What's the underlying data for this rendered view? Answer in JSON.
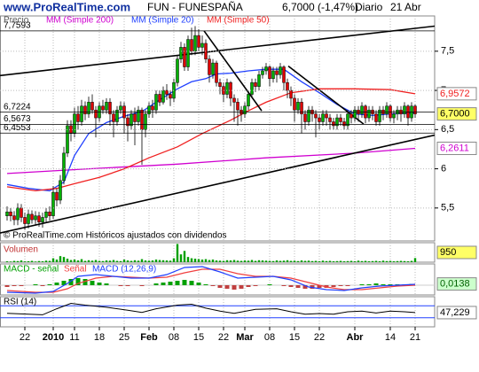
{
  "header": {
    "site": "www.ProRealTime.com",
    "title": "FUN - FUNESPAÑA",
    "quote": "6,7000 (-1,47%)",
    "period": "Diario",
    "date": "21 Abr"
  },
  "chart_data": [
    {
      "type": "candlestick",
      "name": "Precio",
      "up_color": "#00b000",
      "down_color": "#e00000",
      "open": [
        5.4,
        5.45,
        5.4,
        5.35,
        5.5,
        5.38,
        5.3,
        5.42,
        5.35,
        5.4,
        5.32,
        5.38,
        5.45,
        5.4,
        5.7,
        5.6,
        5.85,
        6.2,
        6.55,
        6.45,
        6.7,
        6.6,
        6.8,
        6.7,
        6.85,
        6.75,
        6.65,
        6.8,
        6.75,
        6.85,
        6.7,
        6.6,
        6.75,
        6.8,
        6.65,
        6.55,
        6.7,
        6.6,
        6.75,
        6.5,
        6.7,
        6.8,
        6.75,
        6.95,
        6.85,
        7.0,
        6.95,
        6.9,
        7.1,
        7.4,
        7.55,
        7.3,
        7.65,
        7.5,
        7.7,
        7.55,
        7.6,
        7.4,
        7.2,
        7.35,
        7.1,
        7.05,
        6.95,
        7.1,
        6.9,
        6.85,
        6.75,
        6.7,
        6.8,
        6.95,
        7.1,
        7.05,
        7.2,
        7.25,
        7.3,
        7.15,
        7.25,
        7.2,
        7.3,
        7.1,
        7.0,
        6.9,
        6.75,
        6.85,
        6.7,
        6.6,
        6.75,
        6.7,
        6.65,
        6.6,
        6.7,
        6.65,
        6.6,
        6.55,
        6.65,
        6.6,
        6.55,
        6.7,
        6.65,
        6.75,
        6.7,
        6.8,
        6.65,
        6.75,
        6.7,
        6.6,
        6.75,
        6.7,
        6.8,
        6.65,
        6.7,
        6.75,
        6.7,
        6.8,
        6.65,
        6.8
      ],
      "high": [
        5.52,
        5.5,
        5.46,
        5.56,
        5.55,
        5.44,
        5.48,
        5.47,
        5.46,
        5.45,
        5.44,
        5.5,
        5.52,
        5.78,
        5.75,
        5.92,
        6.28,
        6.62,
        6.62,
        6.78,
        6.8,
        6.88,
        6.86,
        6.92,
        6.95,
        6.8,
        6.85,
        6.88,
        6.9,
        6.9,
        6.75,
        6.8,
        6.86,
        6.85,
        6.7,
        6.75,
        6.78,
        6.8,
        6.78,
        6.75,
        6.85,
        6.88,
        7.0,
        7.0,
        7.05,
        7.08,
        7.0,
        7.15,
        7.45,
        7.62,
        7.6,
        7.7,
        7.8,
        7.82,
        7.78,
        7.7,
        7.65,
        7.45,
        7.4,
        7.38,
        7.15,
        7.1,
        7.15,
        7.12,
        6.95,
        6.9,
        6.8,
        6.85,
        7.0,
        7.15,
        7.15,
        7.25,
        7.3,
        7.35,
        7.32,
        7.3,
        7.3,
        7.35,
        7.32,
        7.15,
        7.05,
        6.95,
        6.9,
        6.9,
        6.75,
        6.8,
        6.8,
        6.75,
        6.7,
        6.75,
        6.75,
        6.7,
        6.65,
        6.7,
        6.7,
        6.65,
        6.75,
        6.75,
        6.8,
        6.8,
        6.85,
        6.82,
        6.8,
        6.8,
        6.75,
        6.8,
        6.8,
        6.85,
        6.82,
        6.75,
        6.8,
        6.8,
        6.85,
        6.82,
        6.85,
        6.82
      ],
      "low": [
        5.34,
        5.33,
        5.28,
        5.28,
        5.32,
        5.22,
        5.24,
        5.3,
        5.28,
        5.26,
        5.25,
        5.32,
        5.34,
        5.36,
        5.52,
        5.55,
        5.8,
        6.15,
        6.35,
        6.4,
        6.5,
        6.55,
        6.62,
        6.65,
        6.7,
        6.4,
        6.6,
        6.7,
        6.7,
        6.55,
        6.4,
        6.55,
        6.7,
        6.45,
        6.35,
        6.5,
        6.3,
        6.55,
        6.05,
        6.4,
        6.65,
        6.65,
        6.7,
        6.8,
        6.82,
        6.88,
        6.8,
        6.85,
        7.05,
        7.35,
        7.25,
        7.25,
        7.45,
        7.45,
        7.5,
        7.45,
        7.35,
        7.1,
        7.15,
        7.05,
        6.95,
        6.85,
        6.9,
        6.8,
        6.6,
        6.55,
        6.6,
        6.65,
        6.75,
        6.9,
        6.98,
        7.0,
        7.15,
        7.2,
        7.05,
        7.1,
        7.1,
        7.15,
        7.0,
        6.9,
        6.8,
        6.6,
        6.7,
        6.45,
        6.5,
        6.55,
        6.6,
        6.4,
        6.5,
        6.55,
        6.55,
        6.5,
        6.5,
        6.5,
        6.55,
        6.5,
        6.5,
        6.58,
        6.6,
        6.6,
        6.65,
        6.58,
        6.6,
        6.62,
        6.55,
        6.55,
        6.62,
        6.65,
        6.6,
        6.58,
        6.62,
        6.6,
        6.65,
        6.55,
        6.6,
        6.65
      ],
      "close": [
        5.45,
        5.4,
        5.35,
        5.5,
        5.38,
        5.3,
        5.42,
        5.35,
        5.4,
        5.32,
        5.38,
        5.45,
        5.4,
        5.7,
        5.6,
        5.85,
        6.2,
        6.55,
        6.45,
        6.7,
        6.6,
        6.8,
        6.7,
        6.85,
        6.75,
        6.65,
        6.8,
        6.75,
        6.85,
        6.7,
        6.6,
        6.75,
        6.8,
        6.65,
        6.55,
        6.7,
        6.6,
        6.75,
        6.5,
        6.7,
        6.8,
        6.75,
        6.95,
        6.85,
        7.0,
        6.95,
        6.9,
        7.1,
        7.4,
        7.55,
        7.3,
        7.65,
        7.5,
        7.7,
        7.55,
        7.6,
        7.4,
        7.2,
        7.35,
        7.1,
        7.05,
        6.95,
        7.1,
        6.9,
        6.85,
        6.75,
        6.7,
        6.8,
        6.95,
        7.1,
        7.05,
        7.2,
        7.25,
        7.3,
        7.15,
        7.25,
        7.2,
        7.3,
        7.1,
        7.0,
        6.9,
        6.75,
        6.85,
        6.7,
        6.6,
        6.75,
        6.7,
        6.65,
        6.6,
        6.7,
        6.65,
        6.6,
        6.55,
        6.65,
        6.6,
        6.55,
        6.7,
        6.65,
        6.75,
        6.7,
        6.8,
        6.65,
        6.75,
        6.7,
        6.6,
        6.75,
        6.7,
        6.8,
        6.65,
        6.7,
        6.75,
        6.7,
        6.8,
        6.65,
        6.8,
        6.7
      ],
      "last_label": "6,7000",
      "overlays": [
        {
          "name": "MM (Simple 200)",
          "color": "#d000d0",
          "x": [
            0,
            23,
            48,
            73,
            98,
            115
          ],
          "values": [
            5.94,
            6.0,
            6.06,
            6.14,
            6.2,
            6.2611
          ],
          "last_label": "6,2611"
        },
        {
          "name": "MM (Simple 20)",
          "color": "#2040ff",
          "x": [
            0,
            6,
            12,
            16,
            19,
            23,
            28,
            33,
            38,
            43,
            48,
            52,
            56,
            59,
            63,
            68,
            73,
            78,
            83,
            88,
            93,
            98,
            103,
            108,
            115
          ],
          "values": [
            5.8,
            5.75,
            5.72,
            5.83,
            6.17,
            6.45,
            6.59,
            6.67,
            6.73,
            6.88,
            7.02,
            7.11,
            7.15,
            7.21,
            7.22,
            7.25,
            7.27,
            7.27,
            7.11,
            6.97,
            6.82,
            6.7,
            6.68,
            6.7,
            6.71
          ]
        },
        {
          "name": "MM (Simple 50)",
          "color": "#f02020",
          "x": [
            0,
            8,
            14,
            19,
            26,
            33,
            40,
            48,
            55,
            63,
            68,
            73,
            80,
            88,
            98,
            108,
            115
          ],
          "values": [
            5.77,
            5.72,
            5.75,
            5.81,
            5.89,
            6.0,
            6.14,
            6.28,
            6.45,
            6.62,
            6.74,
            6.85,
            6.97,
            7.02,
            7.02,
            7.01,
            6.9572
          ],
          "last_label": "6,9572"
        }
      ],
      "levels": [
        {
          "value": 7.7593,
          "label": "7,7593"
        },
        {
          "value": 6.7224,
          "label": "6,7224"
        },
        {
          "value": 6.5673,
          "label": "6,5673"
        },
        {
          "value": 6.4553,
          "label": "6,4553"
        }
      ],
      "trendlines": [
        {
          "x": [
            -2,
            120.5
          ],
          "values": [
            7.19,
            7.82
          ]
        },
        {
          "x": [
            -2,
            120.5
          ],
          "values": [
            5.18,
            6.43
          ]
        },
        {
          "x": [
            55.5,
            71.75
          ],
          "values": [
            7.76,
            6.74
          ]
        },
        {
          "x": [
            79.25,
            100.5
          ],
          "values": [
            7.31,
            6.57
          ]
        }
      ],
      "note": "© ProRealTime.com Históricos ajustados con dividendos",
      "ylim": [
        5.08,
        7.95
      ],
      "yticks": [
        {
          "value": 5.5,
          "label": "5,5"
        },
        6,
        {
          "value": 6.5,
          "label": "6,5"
        },
        7,
        {
          "value": 7.5,
          "label": "7,5"
        }
      ],
      "xlim": [
        -2,
        120.5
      ],
      "xticks": [
        {
          "value": 5,
          "label": "22"
        },
        {
          "value": 13,
          "label": "2010"
        },
        {
          "value": 19,
          "label": "11"
        },
        {
          "value": 26,
          "label": "18"
        },
        {
          "value": 33,
          "label": "25"
        },
        {
          "value": 40,
          "label": "Feb"
        },
        {
          "value": 47,
          "label": "08"
        },
        {
          "value": 54,
          "label": "15"
        },
        {
          "value": 61,
          "label": "22"
        },
        {
          "value": 67,
          "label": "Mar"
        },
        {
          "value": 74,
          "label": "08"
        },
        {
          "value": 81,
          "label": "15"
        },
        {
          "value": 88,
          "label": "22"
        },
        {
          "value": 98,
          "label": "Abr"
        },
        {
          "value": 108,
          "label": "14"
        },
        {
          "value": 115,
          "label": "21"
        }
      ],
      "grid": true
    },
    {
      "type": "bar",
      "title": "Volumen",
      "color": "#00a000",
      "ylim": [
        0,
        4500
      ],
      "values": [
        200,
        150,
        300,
        250,
        400,
        180,
        220,
        300,
        150,
        260,
        200,
        350,
        300,
        900,
        600,
        1400,
        1200,
        800,
        500,
        600,
        400,
        700,
        300,
        450,
        350,
        500,
        300,
        250,
        400,
        350,
        500,
        300,
        250,
        600,
        400,
        300,
        450,
        350,
        700,
        400,
        350,
        400,
        600,
        500,
        450,
        400,
        350,
        900,
        4200,
        1800,
        2600,
        1200,
        900,
        800,
        700,
        600,
        700,
        500,
        600,
        400,
        350,
        300,
        450,
        400,
        500,
        350,
        300,
        400,
        350,
        500,
        300,
        450,
        400,
        350,
        300,
        250,
        400,
        300,
        350,
        450,
        300,
        350,
        250,
        400,
        300,
        350,
        250,
        300,
        200,
        350,
        250,
        300,
        200,
        250,
        300,
        200,
        250,
        300,
        200,
        350,
        250,
        300,
        200,
        250,
        300,
        200,
        350,
        250,
        300,
        200,
        250,
        300,
        250,
        200,
        300,
        950
      ]
    },
    {
      "type": "macd",
      "ylim": [
        -0.11,
        0.24
      ],
      "series": [
        {
          "name": "MACD - señal",
          "color": "#00a000",
          "negative_color": "#c04040",
          "x": [
            0,
            2,
            4,
            6,
            8,
            10,
            12,
            14,
            16,
            18,
            20,
            22,
            24,
            26,
            28,
            30,
            32,
            34,
            36,
            38,
            40,
            42,
            44,
            46,
            48,
            50,
            52,
            54,
            56,
            58,
            60,
            62,
            64,
            66,
            68,
            70,
            72,
            74,
            76,
            78,
            80,
            82,
            84,
            86,
            88,
            90,
            92,
            94,
            96,
            98,
            100,
            102,
            104,
            106,
            108,
            110,
            112,
            114
          ],
          "values": [
            -0.02,
            -0.01,
            -0.01,
            0,
            0.01,
            -0.01,
            0.01,
            0.03,
            0.05,
            0.07,
            0.08,
            0.07,
            0.05,
            0.03,
            0.02,
            0.0,
            -0.01,
            -0.01,
            0.0,
            -0.01,
            0.0,
            0.02,
            0.03,
            0.04,
            0.05,
            0.06,
            0.05,
            0.03,
            0.01,
            -0.01,
            -0.03,
            -0.04,
            -0.05,
            -0.04,
            -0.02,
            -0.01,
            0.0,
            0.01,
            0.0,
            -0.01,
            -0.02,
            -0.03,
            -0.04,
            -0.04,
            -0.03,
            -0.03,
            -0.02,
            -0.01,
            -0.01,
            0.0,
            0.01,
            0.01,
            0.02,
            0.01,
            0.01,
            0.01,
            0.01,
            0.0138
          ],
          "last_label": "0,0138"
        },
        {
          "name": "Señal",
          "color": "#f04040",
          "x": [
            0,
            8,
            13,
            17,
            20,
            25,
            30,
            35,
            40,
            45,
            50,
            55,
            60,
            65,
            70,
            75,
            80,
            85,
            90,
            95,
            100,
            105,
            110,
            115
          ],
          "values": [
            -0.06,
            -0.08,
            -0.08,
            -0.04,
            0.02,
            0.08,
            0.1,
            0.09,
            0.08,
            0.09,
            0.14,
            0.18,
            0.18,
            0.13,
            0.1,
            0.1,
            0.08,
            0.03,
            -0.02,
            -0.05,
            -0.05,
            -0.03,
            -0.01,
            0.0
          ]
        },
        {
          "name": "MACD (12,26,9)",
          "color": "#2040ff",
          "x": [
            0,
            8,
            13,
            17,
            20,
            25,
            30,
            35,
            40,
            45,
            50,
            55,
            60,
            65,
            70,
            75,
            80,
            85,
            90,
            95,
            100,
            105,
            110,
            115
          ],
          "values": [
            -0.08,
            -0.09,
            -0.07,
            0.02,
            0.1,
            0.12,
            0.1,
            0.08,
            0.08,
            0.12,
            0.2,
            0.21,
            0.15,
            0.08,
            0.09,
            0.1,
            0.06,
            -0.02,
            -0.05,
            -0.06,
            -0.03,
            -0.01,
            0.0,
            0.01
          ]
        }
      ]
    },
    {
      "type": "line",
      "title": "RSI (14)",
      "color": "#000000",
      "level_color": "#2040ff",
      "ylim": [
        0,
        100
      ],
      "levels": [
        70,
        30
      ],
      "x": [
        0,
        10,
        14,
        18,
        22,
        28,
        34,
        38,
        42,
        48,
        52,
        56,
        60,
        64,
        70,
        76,
        80,
        84,
        88,
        92,
        96,
        100,
        104,
        108,
        112,
        115
      ],
      "values": [
        45,
        40,
        60,
        78,
        72,
        65,
        55,
        48,
        60,
        72,
        75,
        62,
        52,
        45,
        58,
        60,
        50,
        42,
        44,
        42,
        50,
        52,
        46,
        52,
        50,
        47.229
      ],
      "last_label": "47,229"
    }
  ]
}
